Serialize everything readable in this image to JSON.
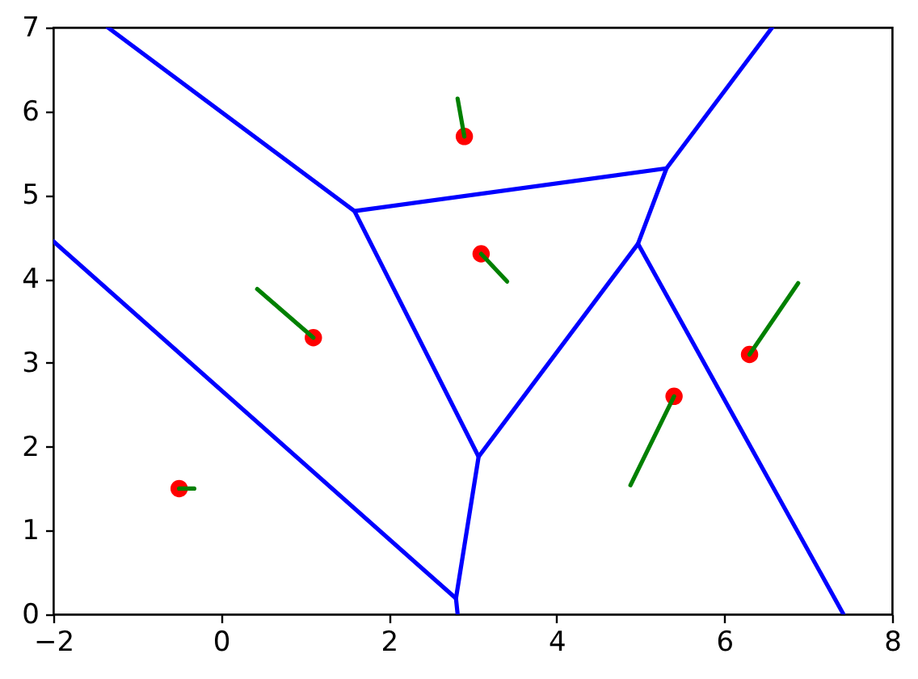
{
  "chart_data": {
    "type": "line",
    "xlim": [
      -2,
      8
    ],
    "ylim": [
      0,
      7
    ],
    "xticks": [
      -2,
      0,
      2,
      4,
      6,
      8
    ],
    "yticks": [
      0,
      1,
      2,
      3,
      4,
      5,
      6,
      7
    ],
    "series": [
      {
        "color": "#0000ff",
        "x": [
          -1.35,
          1.59,
          5.31,
          6.57
        ],
        "values": [
          7,
          4.81,
          5.32,
          7
        ]
      },
      {
        "color": "#0000ff",
        "x": [
          1.59,
          3.07,
          4.97,
          7.42
        ],
        "values": [
          4.81,
          1.88,
          4.42,
          0
        ]
      },
      {
        "color": "#0000ff",
        "x": [
          5.31,
          4.97
        ],
        "values": [
          5.32,
          4.42
        ]
      },
      {
        "color": "#0000ff",
        "x": [
          -2,
          2.8,
          2.82
        ],
        "values": [
          4.45,
          0.19,
          0
        ]
      },
      {
        "color": "#0000ff",
        "x": [
          3.07,
          2.8
        ],
        "values": [
          1.88,
          0.19
        ]
      },
      {
        "type": "scatter",
        "color": "#ff0000",
        "x": [
          2.9,
          3.1,
          1.1,
          -0.5,
          5.4,
          6.3
        ],
        "values": [
          5.7,
          4.3,
          3.3,
          1.5,
          2.6,
          3.1
        ]
      },
      {
        "color": "#008000",
        "x": [
          2.9,
          2.82
        ],
        "values": [
          5.7,
          6.15
        ]
      },
      {
        "color": "#008000",
        "x": [
          3.1,
          3.41
        ],
        "values": [
          4.3,
          3.97
        ]
      },
      {
        "color": "#008000",
        "x": [
          1.1,
          0.43
        ],
        "values": [
          3.3,
          3.88
        ]
      },
      {
        "color": "#008000",
        "x": [
          -0.5,
          -0.32
        ],
        "values": [
          1.5,
          1.5
        ]
      },
      {
        "color": "#008000",
        "x": [
          5.4,
          4.88
        ],
        "values": [
          2.6,
          1.54
        ]
      },
      {
        "color": "#008000",
        "x": [
          6.3,
          6.88
        ],
        "values": [
          3.1,
          3.95
        ]
      }
    ]
  }
}
